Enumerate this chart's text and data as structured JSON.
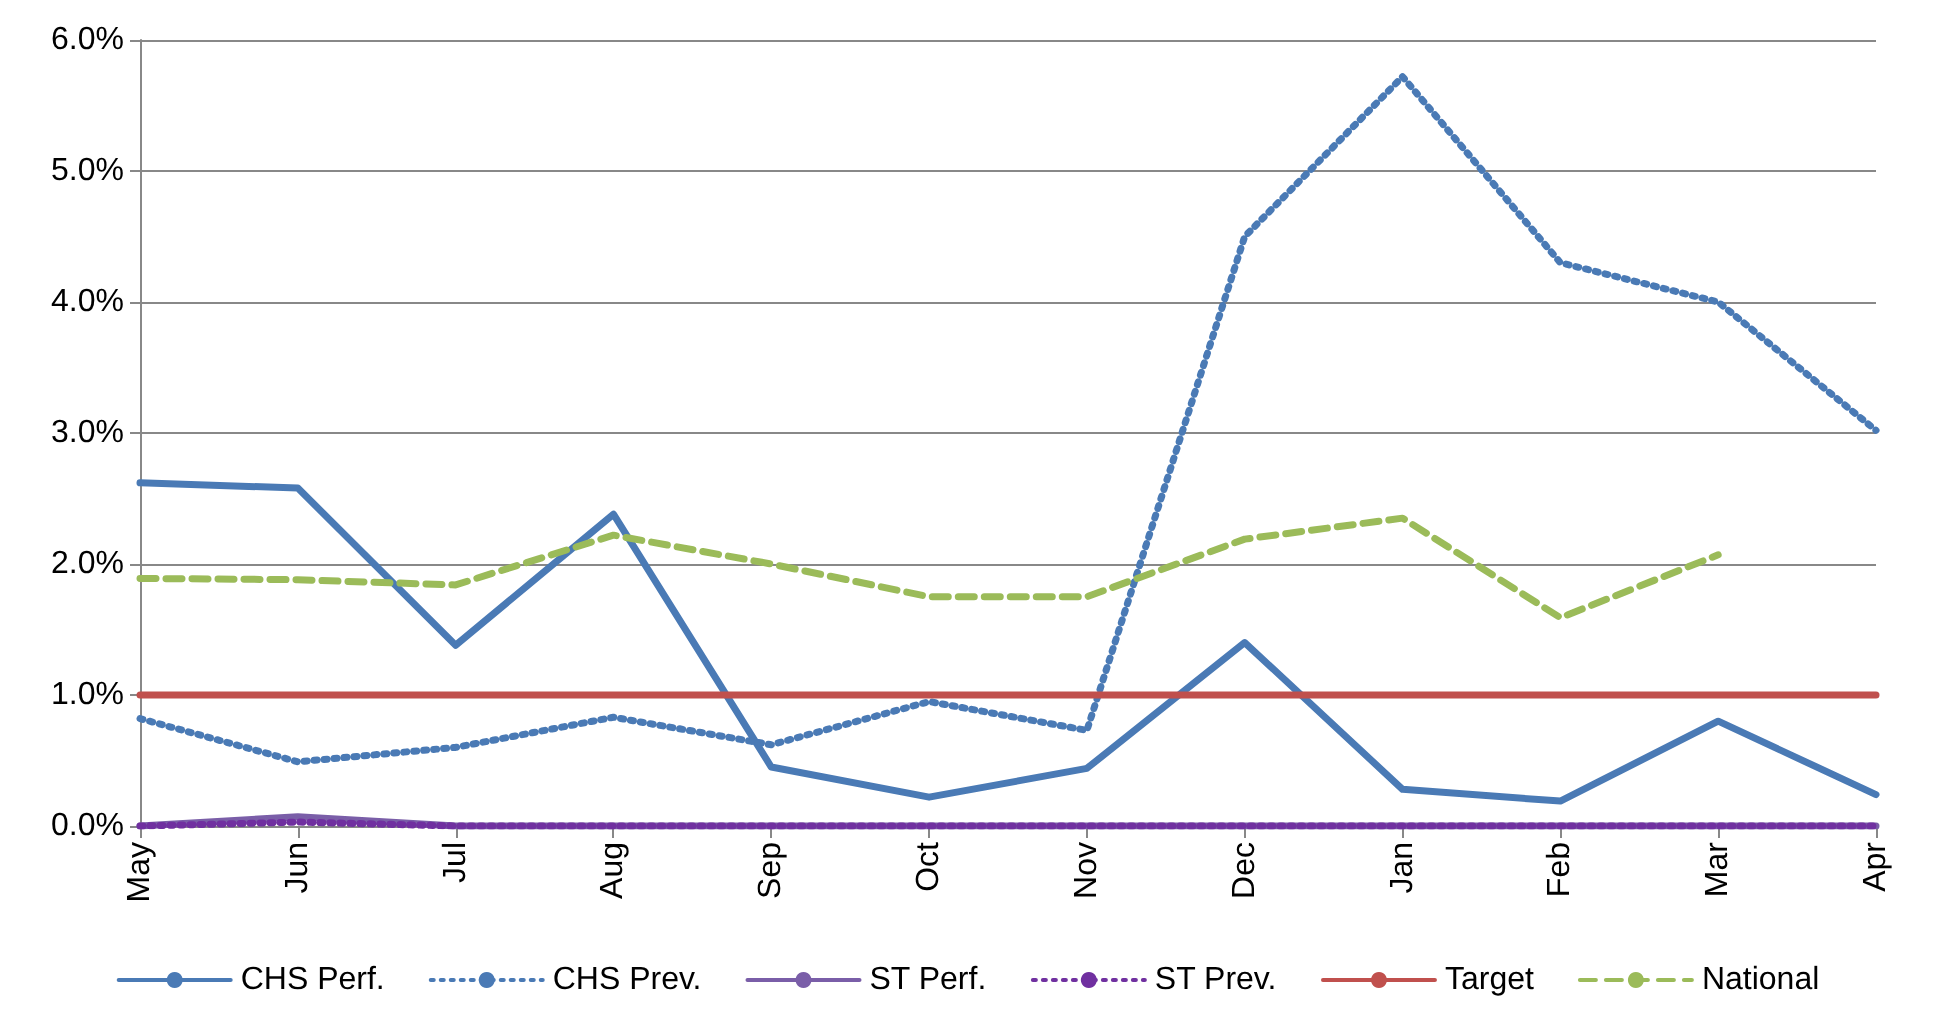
{
  "chart_data": {
    "type": "line",
    "categories": [
      "May",
      "Jun",
      "Jul",
      "Aug",
      "Sep",
      "Oct",
      "Nov",
      "Dec",
      "Jan",
      "Feb",
      "Mar",
      "Apr"
    ],
    "series": [
      {
        "name": "CHS Perf.",
        "color": "#4a7ab5",
        "line_style": "solid",
        "values": [
          2.62,
          2.58,
          1.38,
          2.38,
          0.45,
          0.22,
          0.44,
          1.4,
          0.28,
          0.19,
          0.8,
          0.24
        ]
      },
      {
        "name": "CHS Prev.",
        "color": "#4a7ab5",
        "line_style": "dotted",
        "values": [
          0.82,
          0.49,
          0.6,
          0.83,
          0.62,
          0.95,
          0.73,
          4.5,
          5.72,
          4.3,
          4.0,
          3.02
        ]
      },
      {
        "name": "ST Perf.",
        "color": "#7a5ea8",
        "line_style": "solid",
        "values": [
          0,
          0.07,
          0,
          0,
          0,
          0,
          0,
          0,
          0,
          0,
          0,
          0
        ]
      },
      {
        "name": "ST Prev.",
        "color": "#7030a0",
        "line_style": "dotted",
        "values": [
          0,
          0.03,
          0,
          0,
          0,
          0,
          0,
          0,
          0,
          0,
          0,
          0
        ]
      },
      {
        "name": "Target",
        "color": "#c0504d",
        "line_style": "solid",
        "values": [
          1,
          1,
          1,
          1,
          1,
          1,
          1,
          1,
          1,
          1,
          1,
          1
        ]
      },
      {
        "name": "National",
        "color": "#9bbb59",
        "line_style": "dashed",
        "values": [
          1.89,
          1.88,
          1.84,
          2.22,
          2.0,
          1.75,
          1.75,
          2.19,
          2.35,
          1.59,
          2.07,
          null
        ]
      }
    ],
    "ylim": [
      0,
      6
    ],
    "yticks": [
      {
        "value": 0,
        "label": "0.0%"
      },
      {
        "value": 1,
        "label": "1.0%"
      },
      {
        "value": 2,
        "label": "2.0%"
      },
      {
        "value": 3,
        "label": "3.0%"
      },
      {
        "value": 4,
        "label": "4.0%"
      },
      {
        "value": 5,
        "label": "5.0%"
      },
      {
        "value": 6,
        "label": "6.0%"
      }
    ],
    "grid": "y",
    "legend": "bottom",
    "marker": "none"
  }
}
